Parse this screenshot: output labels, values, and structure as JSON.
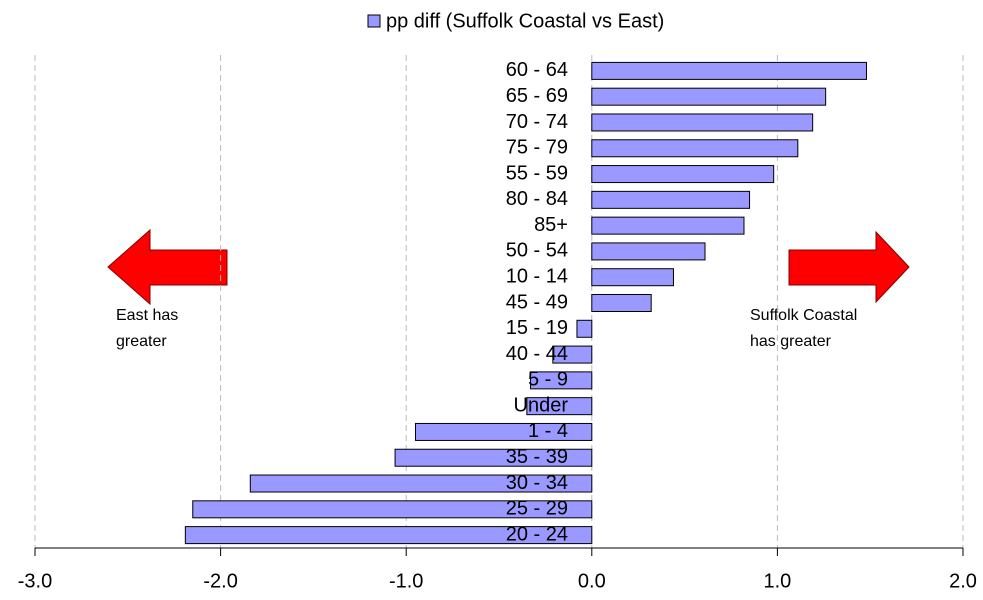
{
  "chart_data": {
    "type": "hbar",
    "legend": "pp diff (Suffolk Coastal vs East)",
    "color": "#9999ff",
    "categories": [
      "60 - 64",
      "65 - 69",
      "70 - 74",
      "75 - 79",
      "55 - 59",
      "80 - 84",
      "85+",
      "50 - 54",
      "10 - 14",
      "45 - 49",
      "15 - 19",
      "40 - 44",
      "5 - 9",
      "Under",
      "1 - 4",
      "35 - 39",
      "30 - 34",
      "25 - 29",
      "20 - 24"
    ],
    "values": [
      1.48,
      1.26,
      1.19,
      1.11,
      0.98,
      0.85,
      0.82,
      0.61,
      0.44,
      0.32,
      -0.08,
      -0.21,
      -0.33,
      -0.35,
      -0.95,
      -1.06,
      -1.84,
      -2.15,
      -2.19
    ],
    "xlim": [
      -3,
      2
    ],
    "xticks": [
      {
        "value": -3,
        "label": "-3.0"
      },
      {
        "value": -2,
        "label": "-2.0"
      },
      {
        "value": -1,
        "label": "-1.0"
      },
      {
        "value": 0,
        "label": "0.0"
      },
      {
        "value": 1,
        "label": "1.0"
      },
      {
        "value": 2,
        "label": "2.0"
      }
    ],
    "grid": true,
    "annotations": [
      {
        "lines": [
          "East has",
          "greater"
        ]
      },
      {
        "lines": [
          "Suffolk Coastal",
          "has greater"
        ]
      }
    ]
  }
}
